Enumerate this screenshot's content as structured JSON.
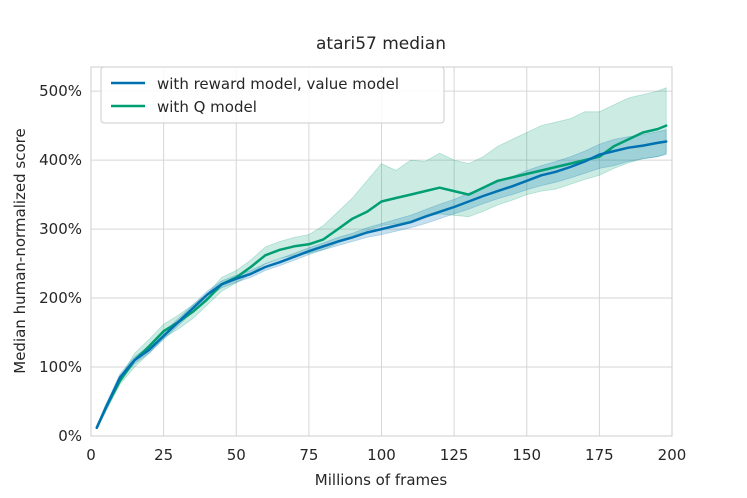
{
  "chart_data": {
    "type": "line",
    "title": "atari57 median",
    "xlabel": "Millions of frames",
    "ylabel": "Median human-normalized score",
    "xlim": [
      0,
      200
    ],
    "ylim": [
      0,
      535
    ],
    "xticks": [
      0,
      25,
      50,
      75,
      100,
      125,
      150,
      175,
      200
    ],
    "yticks": [
      0,
      100,
      200,
      300,
      400,
      500
    ],
    "xtick_labels": [
      "0",
      "25",
      "50",
      "75",
      "100",
      "125",
      "150",
      "175",
      "200"
    ],
    "ytick_labels": [
      "0%",
      "100%",
      "200%",
      "300%",
      "400%",
      "500%"
    ],
    "grid": true,
    "legend_position": "top-left",
    "series": [
      {
        "name": "with reward model, value model",
        "color": "#0072b2",
        "x": [
          2,
          5,
          10,
          15,
          20,
          25,
          30,
          35,
          40,
          45,
          50,
          55,
          60,
          65,
          70,
          75,
          80,
          85,
          90,
          95,
          100,
          105,
          110,
          115,
          120,
          125,
          130,
          135,
          140,
          145,
          150,
          155,
          160,
          165,
          170,
          175,
          180,
          185,
          190,
          195,
          198
        ],
        "values": [
          12,
          40,
          85,
          110,
          125,
          145,
          165,
          185,
          205,
          220,
          228,
          235,
          245,
          252,
          260,
          268,
          275,
          282,
          288,
          295,
          300,
          305,
          310,
          318,
          325,
          332,
          340,
          348,
          355,
          362,
          370,
          378,
          383,
          390,
          398,
          408,
          413,
          418,
          421,
          425,
          427
        ],
        "lower": [
          10,
          35,
          80,
          105,
          120,
          140,
          160,
          180,
          200,
          215,
          223,
          230,
          240,
          247,
          255,
          263,
          270,
          276,
          282,
          288,
          292,
          297,
          302,
          308,
          315,
          322,
          329,
          337,
          344,
          350,
          357,
          363,
          368,
          374,
          381,
          388,
          392,
          398,
          402,
          405,
          408
        ],
        "upper": [
          14,
          45,
          90,
          115,
          130,
          150,
          170,
          190,
          210,
          225,
          233,
          240,
          250,
          257,
          265,
          273,
          280,
          288,
          294,
          302,
          308,
          314,
          320,
          328,
          336,
          343,
          352,
          360,
          368,
          376,
          385,
          392,
          398,
          405,
          413,
          423,
          430,
          434,
          437,
          441,
          444
        ]
      },
      {
        "name": "with Q model",
        "color": "#009e73",
        "x": [
          2,
          5,
          10,
          15,
          20,
          25,
          30,
          35,
          40,
          45,
          50,
          55,
          60,
          65,
          70,
          75,
          80,
          85,
          90,
          95,
          100,
          105,
          110,
          115,
          120,
          125,
          130,
          135,
          140,
          145,
          150,
          155,
          160,
          165,
          170,
          175,
          180,
          185,
          190,
          195,
          198
        ],
        "values": [
          12,
          40,
          80,
          110,
          130,
          152,
          165,
          180,
          198,
          220,
          230,
          245,
          262,
          270,
          275,
          278,
          285,
          300,
          315,
          325,
          340,
          345,
          350,
          355,
          360,
          355,
          350,
          360,
          370,
          375,
          380,
          385,
          390,
          395,
          400,
          405,
          420,
          430,
          440,
          445,
          450
        ],
        "lower": [
          10,
          35,
          75,
          100,
          120,
          142,
          155,
          170,
          190,
          210,
          222,
          235,
          250,
          258,
          262,
          265,
          270,
          280,
          290,
          298,
          305,
          308,
          312,
          318,
          322,
          320,
          318,
          326,
          335,
          342,
          350,
          355,
          358,
          365,
          372,
          378,
          388,
          396,
          402,
          405,
          410
        ],
        "upper": [
          14,
          45,
          85,
          120,
          140,
          162,
          175,
          190,
          206,
          230,
          240,
          255,
          274,
          282,
          288,
          292,
          305,
          325,
          345,
          370,
          395,
          385,
          400,
          398,
          410,
          400,
          395,
          405,
          420,
          430,
          440,
          450,
          455,
          460,
          470,
          470,
          480,
          490,
          495,
          500,
          505
        ]
      }
    ]
  }
}
